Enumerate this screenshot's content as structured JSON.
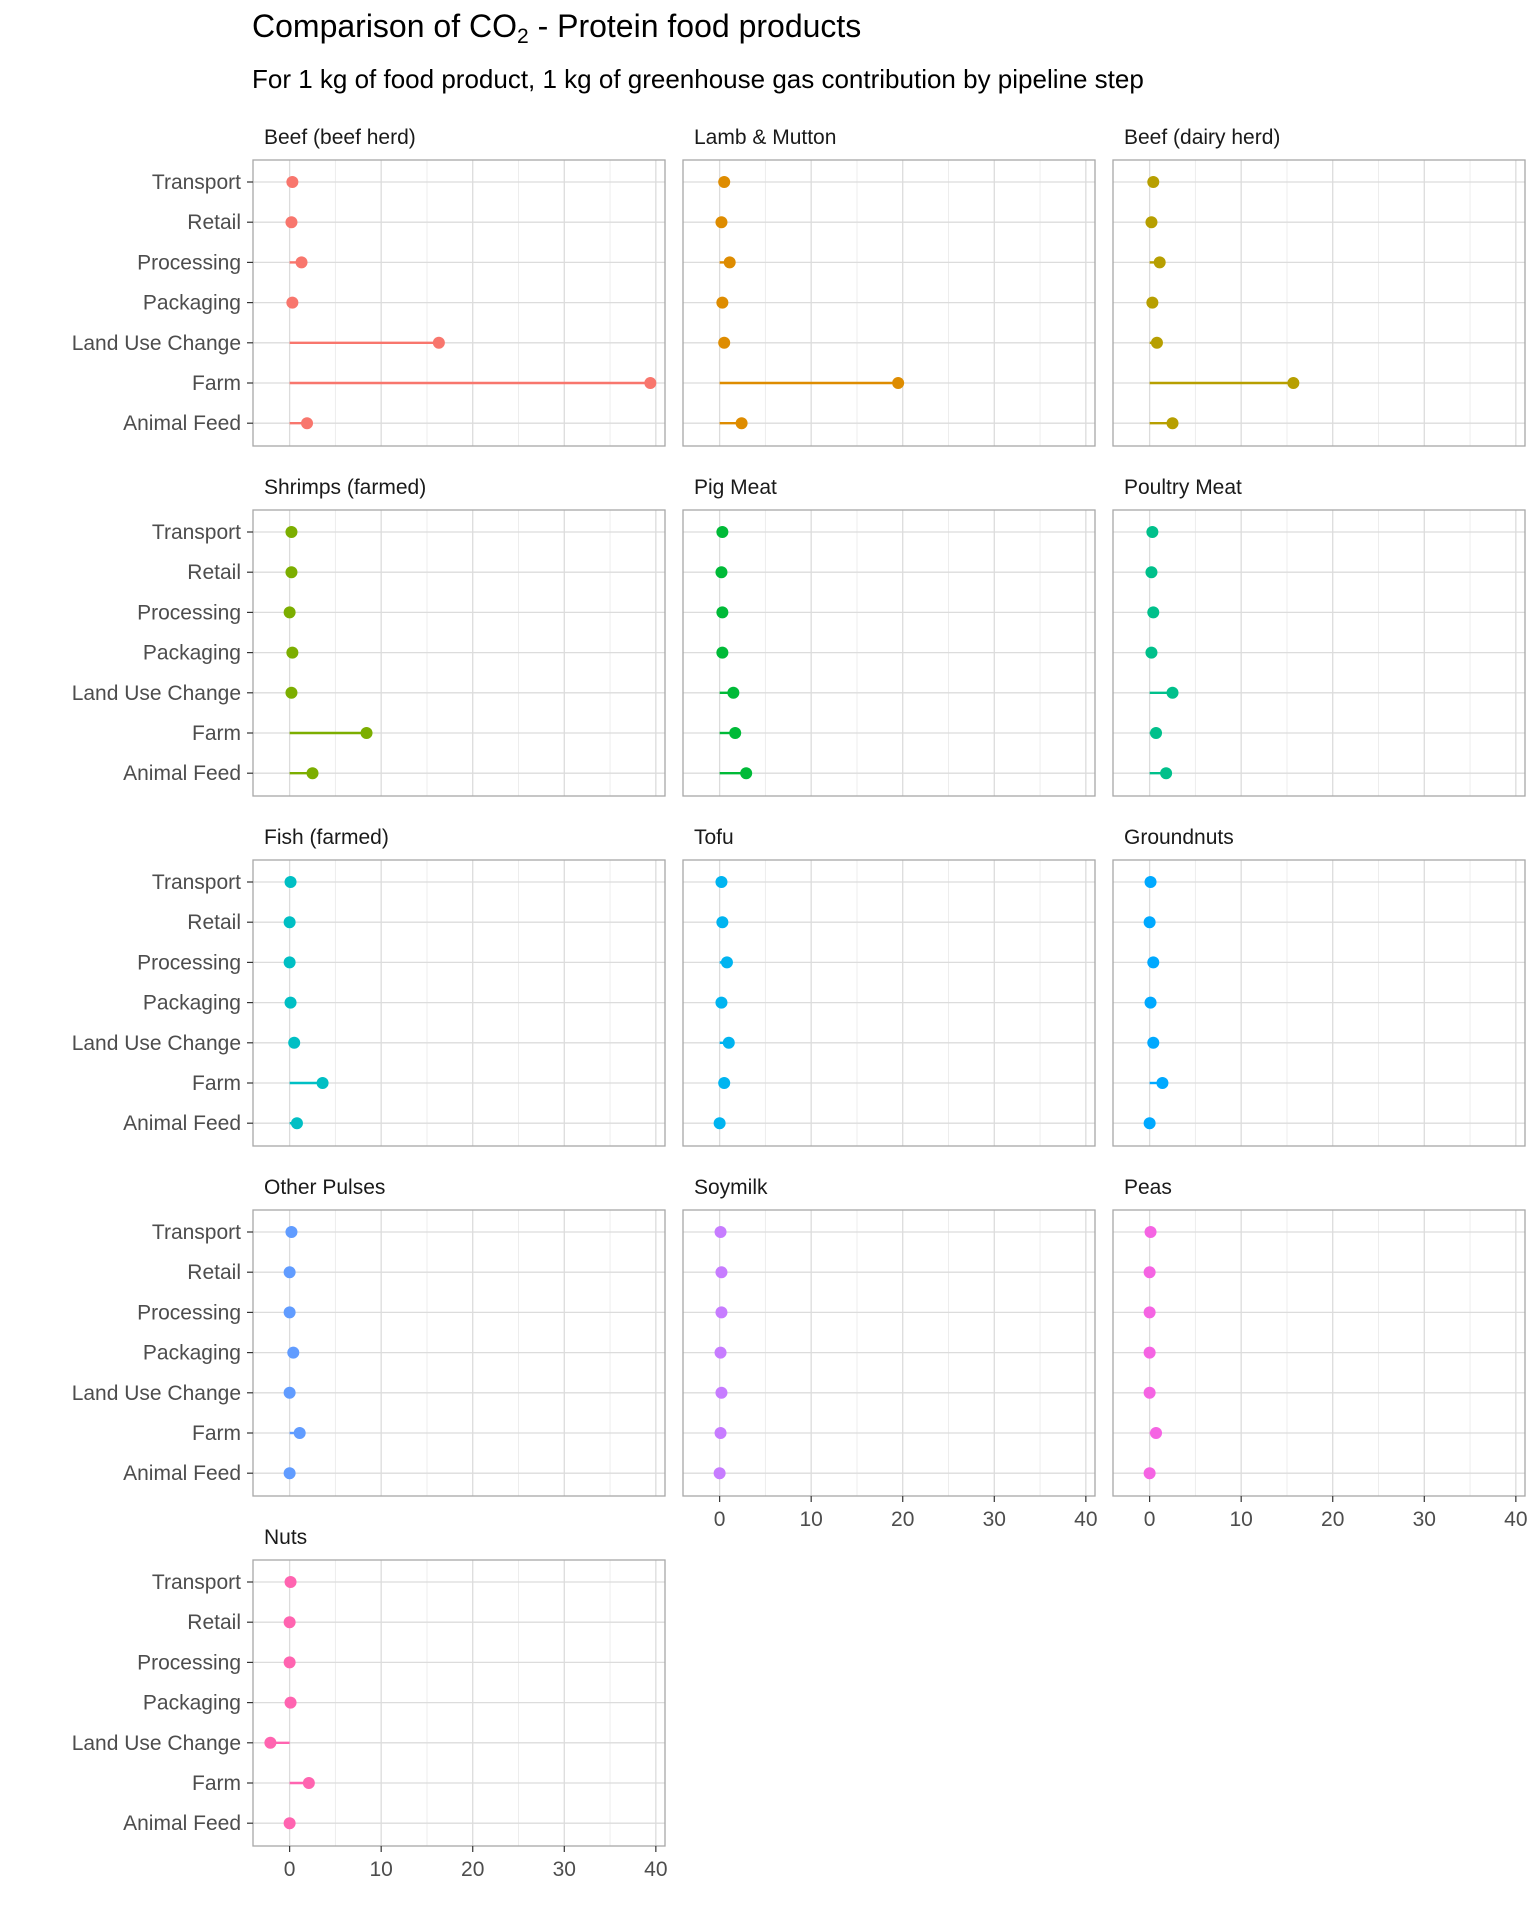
{
  "chart_data": {
    "type": "lollipop",
    "title": {
      "prefix": "Comparison of CO",
      "subscript": "2",
      "suffix": " - Protein food products"
    },
    "subtitle": "For 1 kg of food product, 1 kg of greenhouse gas contribution by pipeline step",
    "xlabel": "",
    "ylabel": "",
    "xlim": [
      -4,
      41
    ],
    "x_ticks": [
      0,
      10,
      20,
      30,
      40
    ],
    "grid": true,
    "legend": "none",
    "categories": [
      "Transport",
      "Retail",
      "Processing",
      "Packaging",
      "Land Use Change",
      "Farm",
      "Animal Feed"
    ],
    "panels": [
      {
        "name": "Beef (beef herd)",
        "color": "#F8766D",
        "values": [
          0.3,
          0.2,
          1.3,
          0.3,
          16.3,
          39.4,
          1.9
        ]
      },
      {
        "name": "Lamb & Mutton",
        "color": "#DE8C00",
        "values": [
          0.5,
          0.2,
          1.1,
          0.3,
          0.5,
          19.5,
          2.4
        ]
      },
      {
        "name": "Beef (dairy herd)",
        "color": "#B79F00",
        "values": [
          0.4,
          0.2,
          1.1,
          0.3,
          0.8,
          15.7,
          2.5
        ]
      },
      {
        "name": "Shrimps (farmed)",
        "color": "#7CAE00",
        "values": [
          0.2,
          0.2,
          0.0,
          0.3,
          0.2,
          8.4,
          2.5
        ]
      },
      {
        "name": "Pig Meat",
        "color": "#00BA38",
        "values": [
          0.3,
          0.2,
          0.3,
          0.3,
          1.5,
          1.7,
          2.9
        ]
      },
      {
        "name": "Poultry Meat",
        "color": "#00C08B",
        "values": [
          0.3,
          0.2,
          0.4,
          0.2,
          2.5,
          0.7,
          1.8
        ]
      },
      {
        "name": "Fish (farmed)",
        "color": "#00BFC4",
        "values": [
          0.1,
          0.0,
          0.0,
          0.1,
          0.5,
          3.6,
          0.8
        ]
      },
      {
        "name": "Tofu",
        "color": "#00B4F0",
        "values": [
          0.2,
          0.3,
          0.8,
          0.2,
          1.0,
          0.5,
          0.0
        ]
      },
      {
        "name": "Groundnuts",
        "color": "#00A9FF",
        "values": [
          0.1,
          0.0,
          0.4,
          0.1,
          0.4,
          1.4,
          0.0
        ]
      },
      {
        "name": "Other Pulses",
        "color": "#619CFF",
        "values": [
          0.2,
          0.0,
          0.0,
          0.4,
          0.0,
          1.1,
          0.0
        ]
      },
      {
        "name": "Soymilk",
        "color": "#C77CFF",
        "values": [
          0.1,
          0.2,
          0.2,
          0.1,
          0.2,
          0.1,
          0.0
        ]
      },
      {
        "name": "Peas",
        "color": "#F564E3",
        "values": [
          0.1,
          0.0,
          0.0,
          0.0,
          0.0,
          0.7,
          0.0
        ]
      },
      {
        "name": "Nuts",
        "color": "#FF64B0",
        "values": [
          0.1,
          0.0,
          0.0,
          0.1,
          -2.1,
          2.1,
          0.0
        ]
      }
    ]
  }
}
